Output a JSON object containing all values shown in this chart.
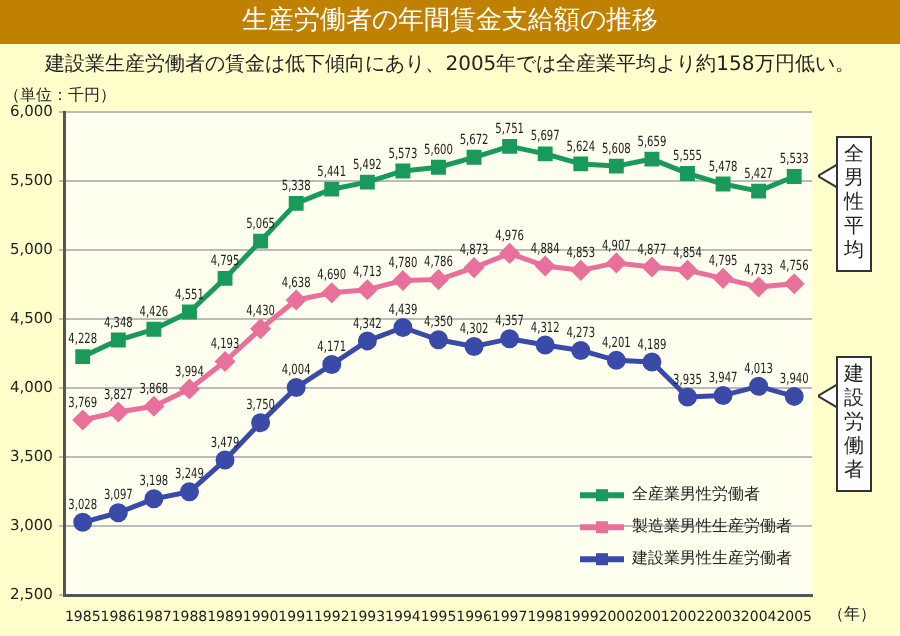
{
  "chart_data": {
    "type": "line",
    "title": "生産労働者の年間賃金支給額の推移",
    "subtitle": "建設業生産労働者の賃金は低下傾向にあり、2005年では全産業平均より約158万円低い。",
    "ylabel": "（単位：千円）",
    "xlabel": "（年）",
    "categories": [
      "1985",
      "1986",
      "1987",
      "1988",
      "1989",
      "1990",
      "1991",
      "1992",
      "1993",
      "1994",
      "1995",
      "1996",
      "1997",
      "1998",
      "1999",
      "2000",
      "2001",
      "2002",
      "2003",
      "2004",
      "2005"
    ],
    "series": [
      {
        "name": "全産業男性労働者",
        "color": "#1a9a5a",
        "marker": "square",
        "values": [
          4228,
          4348,
          4426,
          4551,
          4795,
          5065,
          5338,
          5441,
          5492,
          5573,
          5600,
          5672,
          5751,
          5697,
          5624,
          5608,
          5659,
          5555,
          5478,
          5427,
          5533
        ],
        "value_labels": [
          "4,228",
          "4,348",
          "4,426",
          "4,551",
          "4,795",
          "5,065",
          "5,338",
          "5,441",
          "5,492",
          "5,573",
          "5,600",
          "5,672",
          "5,751",
          "5,697",
          "5,624",
          "5,608",
          "5,659",
          "5,555",
          "5,478",
          "5,427",
          "5,533"
        ]
      },
      {
        "name": "製造業男性生産労働者",
        "color": "#e8709a",
        "marker": "diamond",
        "values": [
          3769,
          3827,
          3868,
          3994,
          4193,
          4430,
          4638,
          4690,
          4713,
          4780,
          4786,
          4873,
          4976,
          4884,
          4853,
          4907,
          4877,
          4854,
          4795,
          4733,
          4756
        ],
        "value_labels": [
          "3,769",
          "3,827",
          "3,868",
          "3,994",
          "4,193",
          "4,430",
          "4,638",
          "4,690",
          "4,713",
          "4,780",
          "4,786",
          "4,873",
          "4,976",
          "4,884",
          "4,853",
          "4,907",
          "4,877",
          "4,854",
          "4,795",
          "4,733",
          "4,756"
        ]
      },
      {
        "name": "建設業男性生産労働者",
        "color": "#3a4aa8",
        "marker": "circle",
        "values": [
          3028,
          3097,
          3198,
          3249,
          3479,
          3750,
          4004,
          4171,
          4342,
          4439,
          4350,
          4302,
          4357,
          4312,
          4273,
          4201,
          4189,
          3935,
          3947,
          4013,
          3940
        ],
        "value_labels": [
          "3,028",
          "3,097",
          "3,198",
          "3,249",
          "3,479",
          "3,750",
          "4,004",
          "4,171",
          "4,342",
          "4,439",
          "4,350",
          "4,302",
          "4,357",
          "4,312",
          "4,273",
          "4,201",
          "4,189",
          "3,935",
          "3,947",
          "4,013",
          "3,940"
        ]
      }
    ],
    "ylim": [
      2500,
      6000
    ],
    "yticks": [
      {
        "value": 2500,
        "label": "2,500"
      },
      {
        "value": 3000,
        "label": "3,000"
      },
      {
        "value": 3500,
        "label": "3,500"
      },
      {
        "value": 4000,
        "label": "4,000"
      },
      {
        "value": 4500,
        "label": "4,500"
      },
      {
        "value": 5000,
        "label": "5,000"
      },
      {
        "value": 5500,
        "label": "5,500"
      },
      {
        "value": 6000,
        "label": "6,000"
      }
    ],
    "grid": "y",
    "legend": "bottom right",
    "line_style": "solid",
    "annotations": [
      {
        "text": "全男性平均",
        "x": "2005",
        "y": 5533
      },
      {
        "text": "建設労働者",
        "x": "2005",
        "y": 3940
      }
    ]
  }
}
